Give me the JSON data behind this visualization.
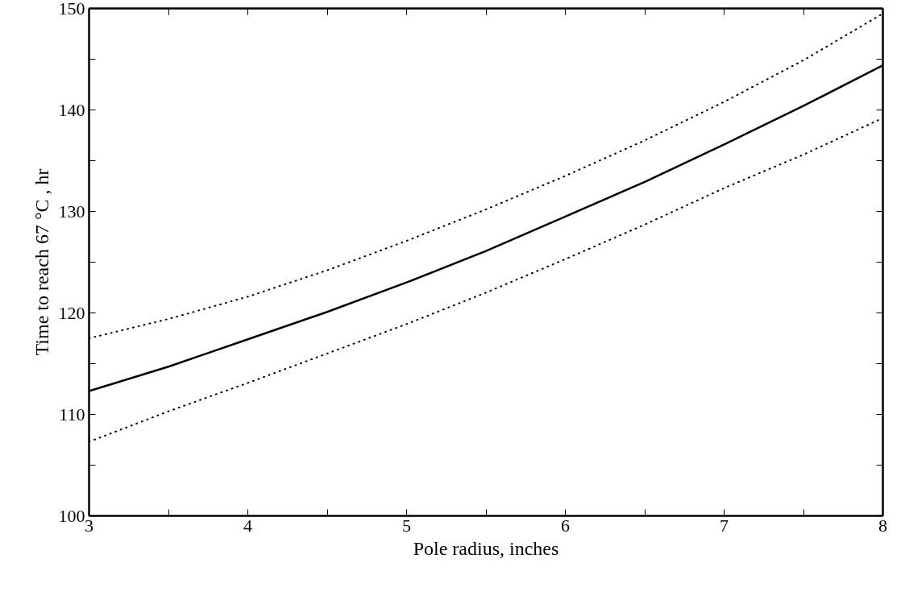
{
  "chart_data": {
    "type": "line",
    "xlabel": "Pole radius, inches",
    "ylabel": "Time to reach 67 °C , hr",
    "x": [
      3,
      3.5,
      4,
      4.5,
      5,
      5.5,
      6,
      6.5,
      7,
      7.5,
      8
    ],
    "series": [
      {
        "color": "#000000",
        "line_style": "solid",
        "values": [
          112.3,
          114.7,
          117.4,
          120.1,
          123.0,
          126.1,
          129.5,
          132.9,
          136.6,
          140.4,
          144.4
        ]
      },
      {
        "color": "#000000",
        "line_style": "dotted",
        "values": [
          117.5,
          119.4,
          121.6,
          124.2,
          127.1,
          130.2,
          133.5,
          137.0,
          140.8,
          144.9,
          149.5
        ]
      },
      {
        "color": "#000000",
        "line_style": "dotted",
        "values": [
          107.3,
          110.3,
          113.1,
          116.0,
          118.9,
          122.0,
          125.3,
          128.7,
          132.3,
          135.6,
          139.2
        ]
      }
    ],
    "xlim": [
      3,
      8
    ],
    "ylim": [
      100,
      150
    ],
    "xticks": [
      3,
      {
        "value": 3.5,
        "label": null
      },
      4,
      {
        "value": 4.5,
        "label": null
      },
      5,
      {
        "value": 5.5,
        "label": null
      },
      6,
      {
        "value": 6.5,
        "label": null
      },
      7,
      {
        "value": 7.5,
        "label": null
      },
      8
    ],
    "yticks": [
      100,
      {
        "value": 105,
        "label": null
      },
      110,
      {
        "value": 115,
        "label": null
      },
      120,
      {
        "value": 125,
        "label": null
      },
      130,
      {
        "value": 135,
        "label": null
      },
      140,
      {
        "value": 145,
        "label": null
      },
      150
    ],
    "grid": false,
    "marker": "none"
  }
}
